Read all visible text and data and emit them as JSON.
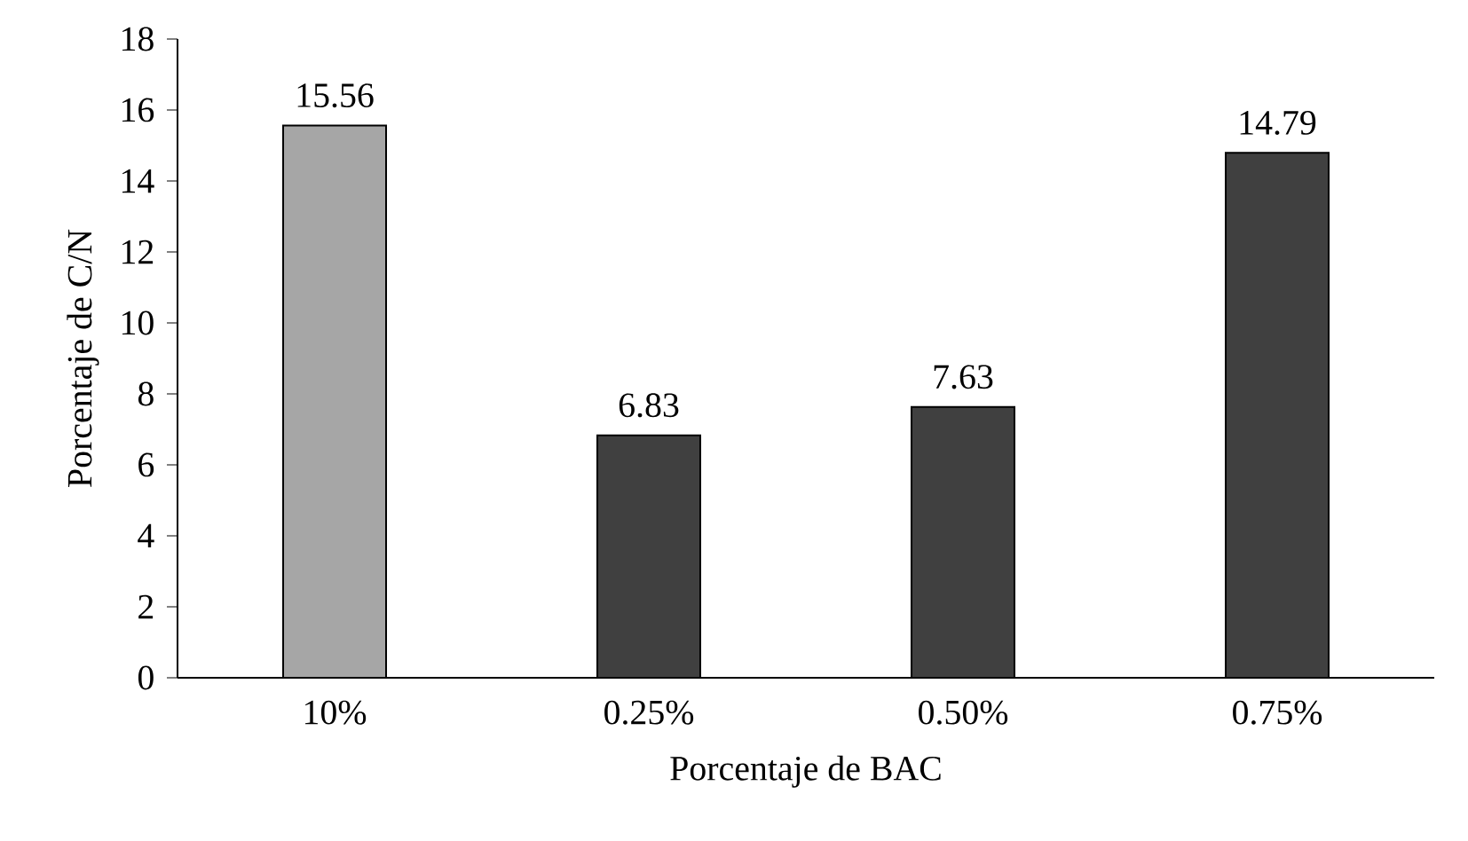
{
  "chart_data": {
    "type": "bar",
    "xlabel": "Porcentaje de BAC",
    "ylabel": "Porcentaje de C/N",
    "categories": [
      "10%",
      "0.25%",
      "0.50%",
      "0.75%"
    ],
    "values": [
      15.56,
      6.83,
      7.63,
      14.79
    ],
    "colors": [
      "#a6a6a6",
      "#404040",
      "#404040",
      "#404040"
    ],
    "ylim": [
      0,
      18
    ],
    "yticks": [
      0,
      2,
      4,
      6,
      8,
      10,
      12,
      14,
      16,
      18
    ],
    "grid": false,
    "data_labels": true
  }
}
